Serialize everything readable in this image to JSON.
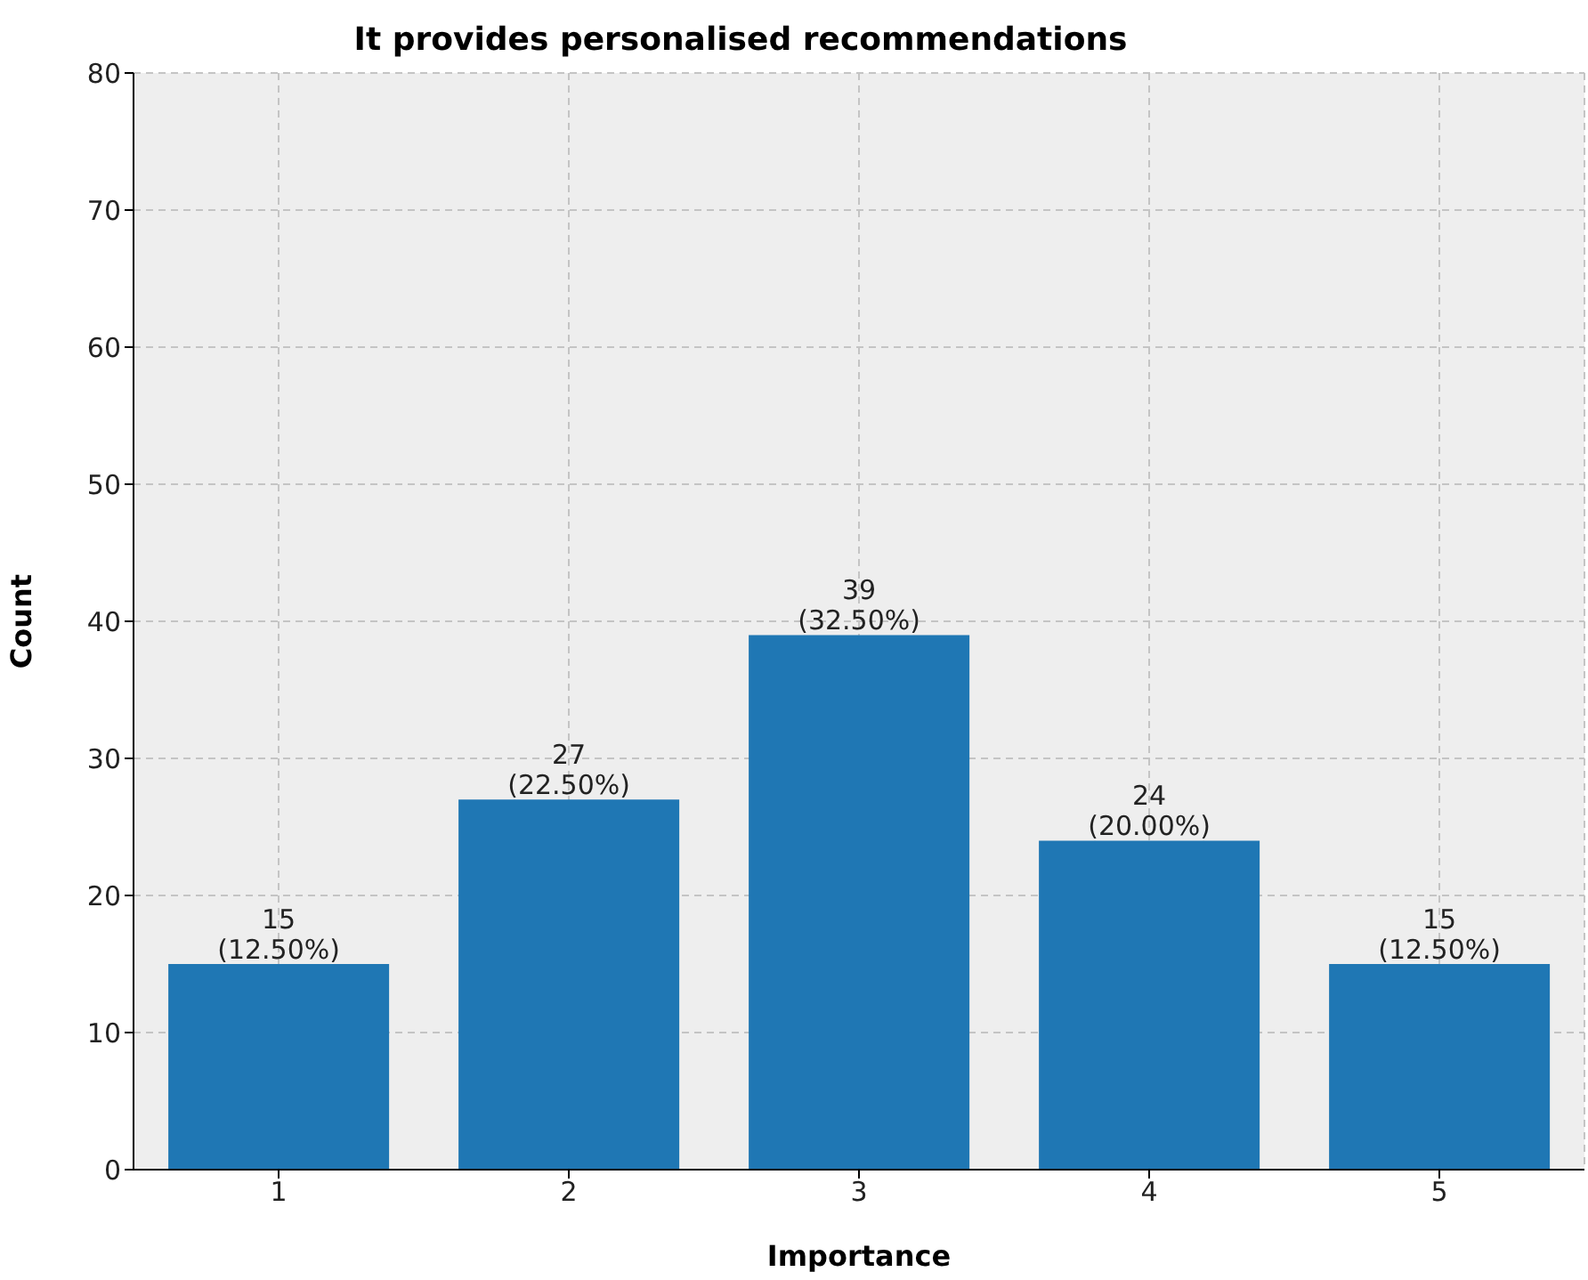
{
  "chart_data": {
    "type": "bar",
    "title": "It provides personalised recommendations",
    "xlabel": "Importance",
    "ylabel": "Count",
    "categories": [
      "1",
      "2",
      "3",
      "4",
      "5"
    ],
    "values": [
      15,
      27,
      39,
      24,
      15
    ],
    "value_labels": [
      "15\n(12.50%)",
      "27\n(22.50%)",
      "39\n(32.50%)",
      "24\n(20.00%)",
      "15\n(12.50%)"
    ],
    "color": "#1f77b4",
    "ylim": [
      0,
      80
    ],
    "yticks": [
      0,
      10,
      20,
      30,
      40,
      50,
      60,
      70,
      80
    ],
    "grid": true
  }
}
